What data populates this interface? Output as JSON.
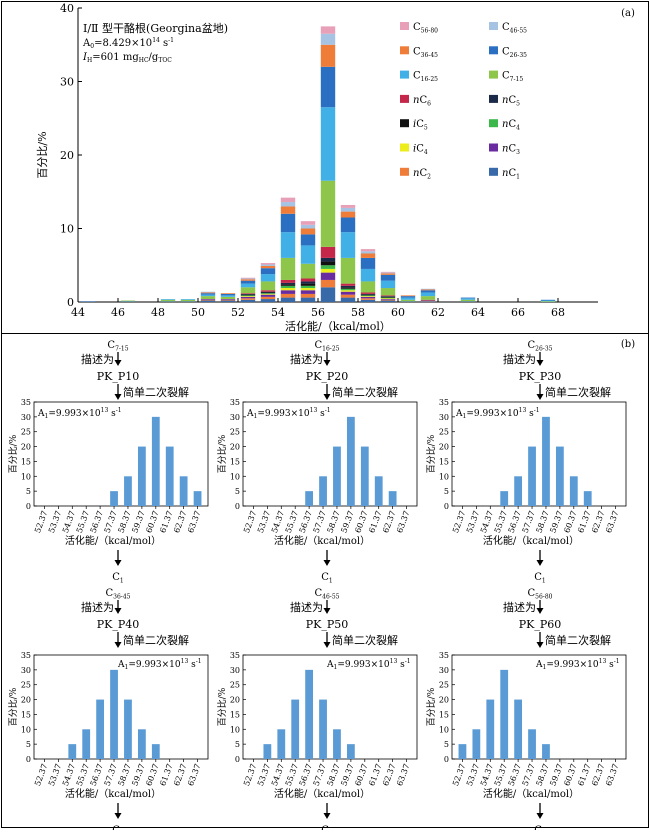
{
  "panel_a": {
    "label": "(a)",
    "title_line1": "Ⅰ/Ⅱ 型干酪根(Georgina盆地)",
    "a0_prefix": "A",
    "a0_sub": "0",
    "a0_value": "=8.429×10",
    "a0_exp": "14",
    "a0_unit": " s",
    "a0_unit_exp": "-1",
    "ih_prefix": "I",
    "ih_sub": "H",
    "ih_value": "=601 mg",
    "ih_unit1_sub": "HC",
    "ih_unit2": "/g",
    "ih_unit2_sub": "TOC",
    "legend": [
      {
        "pre": "C",
        "sub": "56-80",
        "post": "",
        "color": "#e8a0b8"
      },
      {
        "pre": "C",
        "sub": "46-55",
        "post": "",
        "color": "#a6c3e3"
      },
      {
        "pre": "C",
        "sub": "36-45",
        "post": "",
        "color": "#f07c3a"
      },
      {
        "pre": "C",
        "sub": "26-35",
        "post": "",
        "color": "#2a6fc1"
      },
      {
        "pre": "C",
        "sub": "16-25",
        "post": "",
        "color": "#41b0e6"
      },
      {
        "pre": "C",
        "sub": "7-15",
        "post": "",
        "color": "#8dc64b"
      },
      {
        "pre": "nC",
        "sub": "6",
        "post": "",
        "color": "#c4274a"
      },
      {
        "pre": "nC",
        "sub": "5",
        "post": "",
        "color": "#1c2a4a"
      },
      {
        "pre": "iC",
        "sub": "5",
        "post": "",
        "color": "#111111"
      },
      {
        "pre": "nC",
        "sub": "4",
        "post": "",
        "color": "#3cb84a"
      },
      {
        "pre": "iC",
        "sub": "4",
        "post": "",
        "color": "#eded1c"
      },
      {
        "pre": "nC",
        "sub": "3",
        "post": "",
        "color": "#6a2ba0"
      },
      {
        "pre": "nC",
        "sub": "2",
        "post": "",
        "color": "#f07c3a"
      },
      {
        "pre": "nC",
        "sub": "1",
        "post": "",
        "color": "#3869a8"
      }
    ]
  },
  "panel_b": {
    "label": "(b)",
    "rate_prefix": "A",
    "rate_sub": "1",
    "rate_value": "=9.993×10",
    "rate_exp": "13",
    "rate_unit": " s",
    "rate_unit_exp": "-1",
    "desc_text": "描述为",
    "crack_text": "简单二次裂解",
    "product_pre": "C",
    "product_sub": "1"
  },
  "chart_data": [
    {
      "type": "bar",
      "title": "",
      "xlabel": "活化能/（kcal/mol）",
      "ylabel": "百分比/%",
      "xlim": [
        44,
        70
      ],
      "ylim": [
        0,
        40
      ],
      "x_ticks": [
        44,
        46,
        48,
        50,
        52,
        54,
        56,
        58,
        60,
        62,
        64,
        66,
        68
      ],
      "y_ticks": [
        0,
        10,
        20,
        30,
        40
      ],
      "stacked": true,
      "x": [
        44.5,
        45.5,
        46.5,
        47.5,
        48.5,
        49.5,
        50.5,
        51.5,
        52.5,
        53.5,
        54.5,
        55.5,
        56.5,
        57.5,
        58.5,
        59.5,
        60.5,
        61.5,
        62.5,
        63.5,
        67.5
      ],
      "series": [
        {
          "name": "nC1",
          "values": [
            0.1,
            0,
            0.1,
            0,
            0.1,
            0.1,
            0.2,
            0.2,
            0.3,
            0.4,
            0.6,
            0.6,
            2.0,
            0.6,
            0.3,
            0.2,
            0.1,
            0.1,
            0,
            0.1,
            0
          ]
        },
        {
          "name": "nC2",
          "values": [
            0,
            0,
            0,
            0,
            0,
            0,
            0.1,
            0.1,
            0.2,
            0.3,
            0.5,
            0.5,
            1.0,
            0.4,
            0.2,
            0.1,
            0,
            0.1,
            0,
            0,
            0
          ]
        },
        {
          "name": "nC3",
          "values": [
            0,
            0,
            0,
            0,
            0,
            0,
            0.1,
            0.1,
            0.2,
            0.3,
            0.5,
            0.5,
            1.0,
            0.4,
            0.2,
            0.1,
            0,
            0.1,
            0,
            0,
            0
          ]
        },
        {
          "name": "iC4",
          "values": [
            0,
            0,
            0,
            0,
            0,
            0,
            0,
            0,
            0.1,
            0.1,
            0.3,
            0.3,
            0.5,
            0.2,
            0.1,
            0.1,
            0,
            0,
            0,
            0,
            0
          ]
        },
        {
          "name": "nC4",
          "values": [
            0,
            0,
            0,
            0,
            0,
            0,
            0,
            0,
            0.1,
            0.1,
            0.3,
            0.3,
            0.5,
            0.2,
            0.1,
            0.1,
            0,
            0,
            0,
            0,
            0
          ]
        },
        {
          "name": "iC5",
          "values": [
            0,
            0,
            0,
            0,
            0,
            0,
            0,
            0,
            0.1,
            0.1,
            0.2,
            0.3,
            0.5,
            0.2,
            0.1,
            0.1,
            0,
            0,
            0,
            0,
            0
          ]
        },
        {
          "name": "nC5",
          "values": [
            0,
            0,
            0,
            0,
            0,
            0,
            0,
            0,
            0.1,
            0.1,
            0.2,
            0.3,
            0.5,
            0.2,
            0.1,
            0.1,
            0,
            0,
            0,
            0,
            0
          ]
        },
        {
          "name": "nC6",
          "values": [
            0,
            0,
            0,
            0,
            0,
            0,
            0,
            0,
            0.1,
            0.2,
            0.4,
            0.4,
            1.5,
            0.3,
            0.2,
            0.1,
            0,
            0,
            0,
            0,
            0
          ]
        },
        {
          "name": "C7-15",
          "values": [
            0,
            0,
            0.1,
            0,
            0.2,
            0.2,
            0.4,
            0.3,
            0.8,
            1.2,
            3.0,
            2.0,
            9.0,
            3.5,
            1.5,
            1.0,
            0.2,
            0.5,
            0,
            0.2,
            0.1
          ]
        },
        {
          "name": "C16-25",
          "values": [
            0,
            0,
            0,
            0,
            0.1,
            0.1,
            0.2,
            0.2,
            0.5,
            1.0,
            3.5,
            2.5,
            10.0,
            3.5,
            1.7,
            1.0,
            0.3,
            0.5,
            0,
            0.2,
            0.1
          ]
        },
        {
          "name": "C26-35",
          "values": [
            0,
            0,
            0,
            0,
            0,
            0,
            0.2,
            0.2,
            0.4,
            0.8,
            2.5,
            1.5,
            5.5,
            2.0,
            1.5,
            0.8,
            0.2,
            0.3,
            0,
            0.1,
            0.1
          ]
        },
        {
          "name": "C36-45",
          "values": [
            0,
            0,
            0,
            0,
            0,
            0,
            0.1,
            0.1,
            0.2,
            0.3,
            1.0,
            0.8,
            3.0,
            0.8,
            0.6,
            0.2,
            0.1,
            0.1,
            0,
            0,
            0
          ]
        },
        {
          "name": "C46-55",
          "values": [
            0,
            0,
            0,
            0,
            0,
            0,
            0.1,
            0,
            0.1,
            0.2,
            0.6,
            0.5,
            1.5,
            0.5,
            0.3,
            0.1,
            0,
            0.1,
            0,
            0,
            0
          ]
        },
        {
          "name": "C56-80",
          "values": [
            0,
            0,
            0,
            0,
            0,
            0,
            0,
            0,
            0.1,
            0.2,
            0.6,
            0.5,
            1.0,
            0.4,
            0.3,
            0.1,
            0,
            0,
            0,
            0,
            0
          ]
        }
      ]
    },
    {
      "type": "bar",
      "name": "PK_P10",
      "from": "C7-15",
      "xlabel": "活化能/（kcal/mol）",
      "ylabel": "百分比/%",
      "ylim": [
        0,
        35
      ],
      "categories": [
        "52.37",
        "53.37",
        "54.37",
        "55.37",
        "56.37",
        "57.37",
        "58.37",
        "59.37",
        "60.37",
        "61.37",
        "62.37",
        "63.37"
      ],
      "values": [
        0,
        0,
        0,
        0,
        0,
        5,
        10,
        20,
        30,
        20,
        10,
        5
      ]
    },
    {
      "type": "bar",
      "name": "PK_P20",
      "from": "C16-25",
      "xlabel": "活化能/（kcal/mol）",
      "ylabel": "百分比/%",
      "ylim": [
        0,
        35
      ],
      "categories": [
        "52.37",
        "53.37",
        "54.37",
        "55.37",
        "56.37",
        "57.37",
        "58.37",
        "59.37",
        "60.37",
        "61.37",
        "62.37",
        "63.37"
      ],
      "values": [
        0,
        0,
        0,
        0,
        5,
        10,
        20,
        30,
        20,
        10,
        5,
        0
      ]
    },
    {
      "type": "bar",
      "name": "PK_P30",
      "from": "C26-35",
      "xlabel": "活化能/（kcal/mol）",
      "ylabel": "百分比/%",
      "ylim": [
        0,
        35
      ],
      "categories": [
        "52.37",
        "53.37",
        "54.37",
        "55.37",
        "56.37",
        "57.37",
        "58.37",
        "59.37",
        "60.37",
        "61.37",
        "62.37",
        "63.37"
      ],
      "values": [
        0,
        0,
        0,
        5,
        10,
        20,
        30,
        20,
        10,
        5,
        0,
        0
      ]
    },
    {
      "type": "bar",
      "name": "PK_P40",
      "from": "C36-45",
      "xlabel": "活化能/（kcal/mol）",
      "ylabel": "百分比/%",
      "ylim": [
        0,
        35
      ],
      "categories": [
        "52.37",
        "53.37",
        "54.37",
        "55.37",
        "56.37",
        "57.37",
        "58.37",
        "59.37",
        "60.37",
        "61.37",
        "62.37",
        "63.37"
      ],
      "values": [
        0,
        0,
        5,
        10,
        20,
        30,
        20,
        10,
        5,
        0,
        0,
        0
      ]
    },
    {
      "type": "bar",
      "name": "PK_P50",
      "from": "C46-55",
      "xlabel": "活化能/（kcal/mol）",
      "ylabel": "百分比/%",
      "ylim": [
        0,
        35
      ],
      "categories": [
        "52.37",
        "53.37",
        "54.37",
        "55.37",
        "56.37",
        "57.37",
        "58.37",
        "59.37",
        "60.37",
        "61.37",
        "62.37",
        "63.37"
      ],
      "values": [
        0,
        5,
        10,
        20,
        30,
        20,
        10,
        5,
        0,
        0,
        0,
        0
      ]
    },
    {
      "type": "bar",
      "name": "PK_P60",
      "from": "C56-80",
      "xlabel": "活化能/（kcal/mol）",
      "ylabel": "百分比/%",
      "ylim": [
        0,
        35
      ],
      "categories": [
        "52.37",
        "53.37",
        "54.37",
        "55.37",
        "56.37",
        "57.37",
        "58.37",
        "59.37",
        "60.37",
        "61.37",
        "62.37",
        "63.37"
      ],
      "values": [
        5,
        10,
        20,
        30,
        20,
        10,
        5,
        0,
        0,
        0,
        0,
        0
      ]
    }
  ]
}
